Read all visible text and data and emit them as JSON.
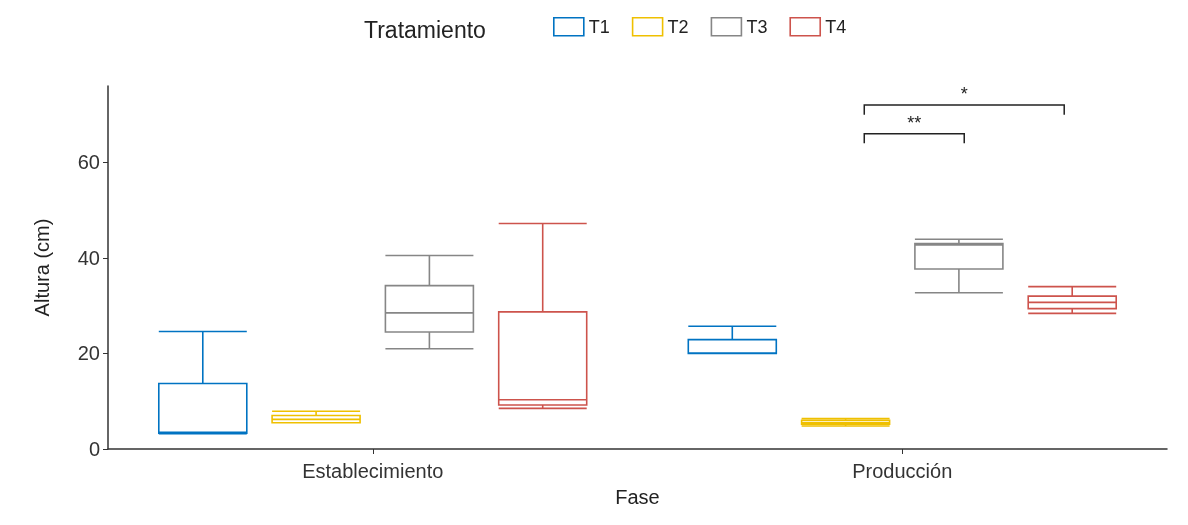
{
  "chart_data": {
    "type": "box",
    "xlabel": "Fase",
    "ylabel": "Altura (cm)",
    "legend_title": "Tratamiento",
    "legend": "top",
    "categories": [
      "Establecimiento",
      "Producción"
    ],
    "ylim": [
      0,
      76
    ],
    "yticks": [
      0,
      20,
      40,
      60
    ],
    "grid": false,
    "series": [
      {
        "name": "T1",
        "color": "#0073c2",
        "boxes": [
          {
            "low": 3.2,
            "q1": 3.3,
            "median": 3.5,
            "q3": 13.7,
            "high": 24.6
          },
          {
            "low": 20.0,
            "q1": 20.0,
            "median": 20.1,
            "q3": 22.9,
            "high": 25.7
          }
        ]
      },
      {
        "name": "T2",
        "color": "#efc000",
        "boxes": [
          {
            "low": 5.5,
            "q1": 5.5,
            "median": 6.2,
            "q3": 7.0,
            "high": 7.9
          },
          {
            "low": 4.8,
            "q1": 5.2,
            "median": 5.5,
            "q3": 6.0,
            "high": 6.4
          }
        ]
      },
      {
        "name": "T3",
        "color": "#868686",
        "boxes": [
          {
            "low": 21.0,
            "q1": 24.5,
            "median": 28.5,
            "q3": 34.2,
            "high": 40.5
          },
          {
            "low": 32.7,
            "q1": 37.7,
            "median": 42.7,
            "q3": 43.0,
            "high": 43.9
          }
        ]
      },
      {
        "name": "T4",
        "color": "#cd534c",
        "boxes": [
          {
            "low": 8.5,
            "q1": 9.2,
            "median": 10.3,
            "q3": 28.7,
            "high": 47.2
          },
          {
            "low": 28.4,
            "q1": 29.4,
            "median": 30.7,
            "q3": 32.0,
            "high": 34.0
          }
        ]
      }
    ],
    "annotations": [
      "**",
      "*"
    ]
  }
}
